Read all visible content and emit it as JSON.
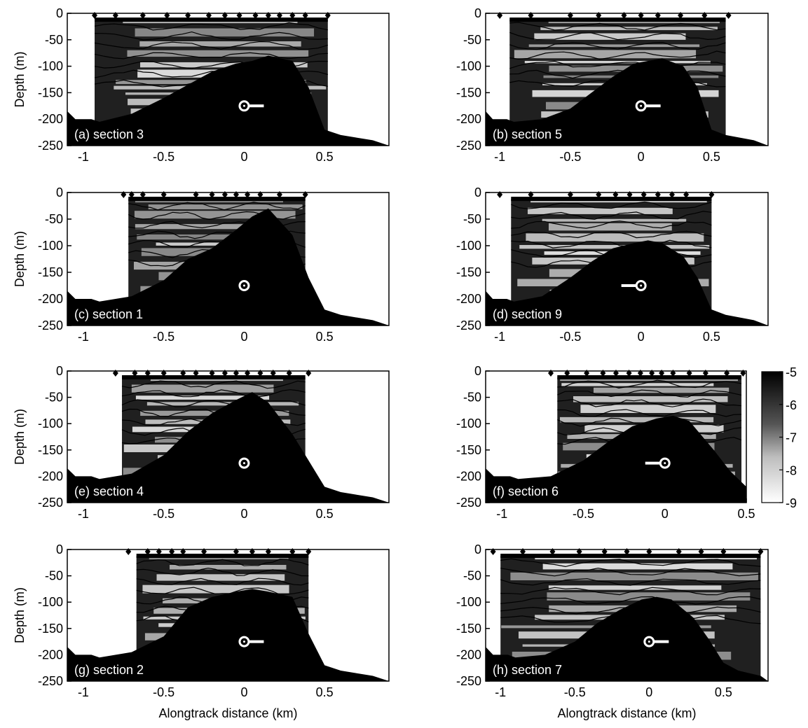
{
  "figure": {
    "colorbar": {
      "min": -9,
      "max": -5,
      "ticks": [
        "-5",
        "-6",
        "-7",
        "-8",
        "-9"
      ],
      "colors": {
        "high": "#000000",
        "low": "#ffffff"
      }
    }
  },
  "chart_data": [
    {
      "id": "a",
      "type": "heatmap",
      "label": "(a) section 3",
      "xlabel": "",
      "ylabel": "Depth (m)",
      "xlim": [
        -1.1,
        0.9
      ],
      "ylim": [
        -250,
        0
      ],
      "xticks": [
        "-1",
        "-0.5",
        "0",
        "0.5"
      ],
      "yticks": [
        "0",
        "-50",
        "-100",
        "-150",
        "-200",
        "-250"
      ],
      "data_x_range": [
        -0.93,
        0.52
      ],
      "stations_x": [
        -0.93,
        -0.8,
        -0.63,
        -0.48,
        -0.35,
        -0.22,
        -0.12,
        -0.03,
        0.07,
        0.15,
        0.22,
        0.3,
        0.38,
        0.52
      ],
      "mooring": {
        "x": 0,
        "depth": -175,
        "arm": "right"
      },
      "bathymetry": {
        "x": [
          -1.1,
          -1.05,
          -0.95,
          -0.9,
          -0.7,
          -0.5,
          -0.35,
          -0.2,
          -0.05,
          0.05,
          0.15,
          0.3,
          0.4,
          0.5,
          0.6,
          0.8,
          0.9
        ],
        "depth": [
          -185,
          -200,
          -200,
          -205,
          -190,
          -160,
          -135,
          -110,
          -95,
          -90,
          -80,
          -90,
          -140,
          -220,
          -230,
          -240,
          -250
        ]
      }
    },
    {
      "id": "b",
      "type": "heatmap",
      "label": "(b) section 5",
      "xlabel": "",
      "ylabel": "",
      "xlim": [
        -1.1,
        0.9
      ],
      "ylim": [
        -250,
        0
      ],
      "xticks": [
        "-1",
        "-0.5",
        "0",
        "0.5"
      ],
      "yticks": [
        "0",
        "-50",
        "-100",
        "-150",
        "-200",
        "-250"
      ],
      "data_x_range": [
        -0.93,
        0.6
      ],
      "stations_x": [
        -1.0,
        -0.78,
        -0.5,
        -0.3,
        -0.12,
        0.0,
        0.12,
        0.28,
        0.45,
        0.62
      ],
      "mooring": {
        "x": 0,
        "depth": -175,
        "arm": "right"
      },
      "bathymetry": {
        "x": [
          -1.1,
          -1.05,
          -0.95,
          -0.9,
          -0.7,
          -0.5,
          -0.35,
          -0.2,
          -0.05,
          0.05,
          0.15,
          0.3,
          0.4,
          0.5,
          0.6,
          0.8,
          0.9
        ],
        "depth": [
          -185,
          -200,
          -200,
          -205,
          -200,
          -180,
          -150,
          -120,
          -95,
          -90,
          -85,
          -100,
          -140,
          -220,
          -230,
          -240,
          -250
        ]
      }
    },
    {
      "id": "c",
      "type": "heatmap",
      "label": "(c) section 1",
      "xlabel": "",
      "ylabel": "Depth (m)",
      "xlim": [
        -1.1,
        0.9
      ],
      "ylim": [
        -250,
        0
      ],
      "xticks": [
        "-1",
        "-0.5",
        "0",
        "0.5"
      ],
      "yticks": [
        "0",
        "-50",
        "-100",
        "-150",
        "-200",
        "-250"
      ],
      "data_x_range": [
        -0.72,
        0.38
      ],
      "stations_x": [
        -0.75,
        -0.7,
        -0.63,
        -0.5,
        -0.3,
        -0.2,
        -0.12,
        -0.05,
        0.02,
        0.1,
        0.22,
        0.38
      ],
      "mooring": {
        "x": 0,
        "depth": -175,
        "arm": "none"
      },
      "bathymetry": {
        "x": [
          -1.1,
          -1.05,
          -0.95,
          -0.9,
          -0.7,
          -0.5,
          -0.35,
          -0.2,
          -0.05,
          0.05,
          0.15,
          0.3,
          0.4,
          0.5,
          0.6,
          0.8,
          0.9
        ],
        "depth": [
          -185,
          -200,
          -200,
          -205,
          -195,
          -165,
          -125,
          -105,
          -70,
          -45,
          -30,
          -80,
          -160,
          -220,
          -230,
          -240,
          -250
        ]
      }
    },
    {
      "id": "d",
      "type": "heatmap",
      "label": "(d) section 9",
      "xlabel": "",
      "ylabel": "",
      "xlim": [
        -1.1,
        0.9
      ],
      "ylim": [
        -250,
        0
      ],
      "xticks": [
        "-1",
        "-0.5",
        "0",
        "0.5"
      ],
      "yticks": [
        "0",
        "-50",
        "-100",
        "-150",
        "-200",
        "-250"
      ],
      "data_x_range": [
        -0.92,
        0.5
      ],
      "stations_x": [
        -1.0,
        -0.78,
        -0.5,
        -0.3,
        -0.18,
        -0.08,
        0.02,
        0.12,
        0.22,
        0.32,
        0.5
      ],
      "mooring": {
        "x": 0,
        "depth": -175,
        "arm": "left"
      },
      "bathymetry": {
        "x": [
          -1.1,
          -1.05,
          -0.95,
          -0.9,
          -0.7,
          -0.5,
          -0.35,
          -0.2,
          -0.05,
          0.05,
          0.15,
          0.3,
          0.4,
          0.5,
          0.6,
          0.8,
          0.9
        ],
        "depth": [
          -185,
          -200,
          -200,
          -205,
          -195,
          -160,
          -130,
          -105,
          -95,
          -90,
          -95,
          -120,
          -160,
          -220,
          -230,
          -240,
          -250
        ]
      }
    },
    {
      "id": "e",
      "type": "heatmap",
      "label": "(e) section 4",
      "xlabel": "",
      "ylabel": "Depth (m)",
      "xlim": [
        -1.1,
        0.9
      ],
      "ylim": [
        -250,
        0
      ],
      "xticks": [
        "-1",
        "-0.5",
        "0",
        "0.5"
      ],
      "yticks": [
        "0",
        "-50",
        "-100",
        "-150",
        "-200",
        "-250"
      ],
      "data_x_range": [
        -0.76,
        0.38
      ],
      "stations_x": [
        -0.8,
        -0.68,
        -0.6,
        -0.5,
        -0.38,
        -0.3,
        -0.2,
        -0.12,
        -0.05,
        0.02,
        0.1,
        0.18,
        0.28,
        0.4
      ],
      "mooring": {
        "x": 0,
        "depth": -175,
        "arm": "none"
      },
      "bathymetry": {
        "x": [
          -1.1,
          -1.05,
          -0.95,
          -0.9,
          -0.7,
          -0.5,
          -0.35,
          -0.2,
          -0.05,
          0.05,
          0.15,
          0.3,
          0.4,
          0.5,
          0.6,
          0.8,
          0.9
        ],
        "depth": [
          -185,
          -200,
          -200,
          -205,
          -195,
          -160,
          -115,
          -80,
          -55,
          -40,
          -60,
          -120,
          -170,
          -220,
          -230,
          -240,
          -250
        ]
      }
    },
    {
      "id": "f",
      "type": "heatmap",
      "label": "(f) section 6",
      "xlabel": "",
      "ylabel": "",
      "xlim": [
        -1.1,
        0.5
      ],
      "ylim": [
        -250,
        0
      ],
      "xticks": [
        "-1",
        "-0.5",
        "0",
        "0.5"
      ],
      "yticks": [
        "0",
        "-50",
        "-100",
        "-150",
        "-200",
        "-250"
      ],
      "data_x_range": [
        -0.66,
        0.47
      ],
      "stations_x": [
        -0.7,
        -0.6,
        -0.48,
        -0.38,
        -0.3,
        -0.22,
        -0.15,
        -0.08,
        -0.02,
        0.05,
        0.15,
        0.25,
        0.38,
        0.48
      ],
      "mooring": {
        "x": 0,
        "depth": -175,
        "arm": "left"
      },
      "bathymetry": {
        "x": [
          -1.1,
          -1.05,
          -0.95,
          -0.9,
          -0.7,
          -0.5,
          -0.35,
          -0.2,
          -0.05,
          0.05,
          0.15,
          0.3,
          0.4,
          0.5
        ],
        "depth": [
          -185,
          -200,
          -200,
          -205,
          -200,
          -170,
          -135,
          -105,
          -90,
          -85,
          -95,
          -150,
          -190,
          -220
        ]
      }
    },
    {
      "id": "g",
      "type": "heatmap",
      "label": "(g) section 2",
      "xlabel": "Alongtrack distance (km)",
      "ylabel": "Depth (m)",
      "xlim": [
        -1.1,
        0.9
      ],
      "ylim": [
        -250,
        0
      ],
      "xticks": [
        "-1",
        "-0.5",
        "0",
        "0.5"
      ],
      "yticks": [
        "0",
        "-50",
        "-100",
        "-150",
        "-200",
        "-250"
      ],
      "data_x_range": [
        -0.67,
        0.4
      ],
      "stations_x": [
        -0.72,
        -0.6,
        -0.53,
        -0.45,
        -0.38,
        -0.25,
        -0.05,
        0.05,
        0.15,
        0.3,
        0.4
      ],
      "mooring": {
        "x": 0,
        "depth": -175,
        "arm": "right"
      },
      "bathymetry": {
        "x": [
          -1.1,
          -1.05,
          -0.95,
          -0.9,
          -0.7,
          -0.5,
          -0.35,
          -0.2,
          -0.05,
          0.05,
          0.15,
          0.3,
          0.4,
          0.5,
          0.6,
          0.8,
          0.9
        ],
        "depth": [
          -185,
          -200,
          -200,
          -205,
          -195,
          -165,
          -110,
          -90,
          -80,
          -75,
          -80,
          -90,
          -160,
          -220,
          -230,
          -240,
          -250
        ]
      }
    },
    {
      "id": "h",
      "type": "heatmap",
      "label": "(h) section 7",
      "xlabel": "Alongtrack distance (km)",
      "ylabel": "",
      "xlim": [
        -1.1,
        0.8
      ],
      "ylim": [
        -250,
        0
      ],
      "xticks": [
        "-1",
        "-0.5",
        "0",
        "0.5"
      ],
      "yticks": [
        "0",
        "-50",
        "-100",
        "-150",
        "-200",
        "-250"
      ],
      "data_x_range": [
        -1.0,
        0.75
      ],
      "stations_x": [
        -1.05,
        -0.85,
        -0.65,
        -0.47,
        -0.3,
        -0.15,
        0.0,
        0.2,
        0.35,
        0.5,
        0.75
      ],
      "mooring": {
        "x": 0,
        "depth": -175,
        "arm": "right"
      },
      "bathymetry": {
        "x": [
          -1.1,
          -1.05,
          -0.95,
          -0.9,
          -0.7,
          -0.5,
          -0.35,
          -0.2,
          -0.05,
          0.05,
          0.15,
          0.3,
          0.4,
          0.5,
          0.6,
          0.75,
          0.8
        ],
        "depth": [
          -185,
          -200,
          -200,
          -205,
          -200,
          -175,
          -140,
          -115,
          -95,
          -90,
          -95,
          -130,
          -170,
          -215,
          -230,
          -240,
          -250
        ]
      }
    }
  ]
}
